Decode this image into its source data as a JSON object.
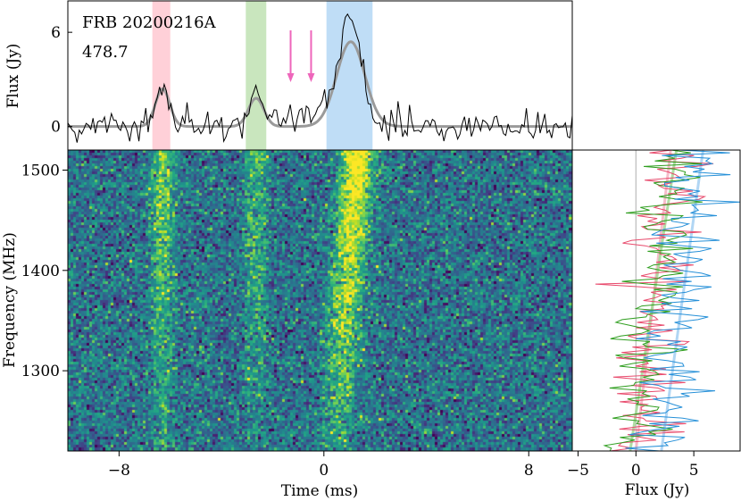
{
  "chart_data": [
    {
      "panel": "profile",
      "type": "line",
      "annotations": [
        "FRB 20200216A",
        "478.7"
      ],
      "ylabel": "Flux (Jy)",
      "xlim": [
        -10,
        9.7
      ],
      "ylim": [
        -1.5,
        8
      ],
      "yticks": [
        0,
        6
      ],
      "shaded_bands": [
        {
          "color": "#ffc0cb",
          "x_start": -6.7,
          "x_end": -6.0
        },
        {
          "color": "#b7dea8",
          "x_start": -3.05,
          "x_end": -2.25
        },
        {
          "color": "#a9d2f3",
          "x_start": 0.1,
          "x_end": 1.9
        }
      ],
      "arrows_x": [
        -1.3,
        -0.5
      ],
      "arrow_color": "#ee66bb",
      "series": [
        {
          "role": "data",
          "color": "#000000",
          "peaks": [
            {
              "x": -6.3,
              "y": 2.8
            },
            {
              "x": -2.65,
              "y": 2.3
            },
            {
              "x": 1.0,
              "y": 6.9
            }
          ],
          "noise_rms": 0.5
        },
        {
          "role": "fit",
          "color": "#999999",
          "components": [
            {
              "x": -6.3,
              "amp": 2.4,
              "sigma": 0.28
            },
            {
              "x": -2.65,
              "amp": 1.8,
              "sigma": 0.3
            },
            {
              "x": 1.05,
              "amp": 5.4,
              "sigma": 0.55
            }
          ]
        }
      ]
    },
    {
      "panel": "dynamic-spectrum",
      "type": "heatmap",
      "colormap": "viridis",
      "xlabel": "Time (ms)",
      "ylabel": "Frequency (MHz)",
      "xlim": [
        -10,
        9.7
      ],
      "ylim": [
        1220,
        1520
      ],
      "xticks": [
        -8,
        0,
        8
      ],
      "yticks": [
        1300,
        1400,
        1500
      ],
      "bursts_x": [
        -6.3,
        -2.65,
        1.0
      ]
    },
    {
      "panel": "spectra",
      "type": "line",
      "xlabel": "Flux (Jy)",
      "xlim": [
        -5.5,
        9
      ],
      "ylim": [
        1220,
        1520
      ],
      "xticks": [
        -5,
        0,
        5
      ],
      "series": [
        {
          "color": "#e84a6c",
          "fit_color": "#f4b6c4",
          "fit_x": [
            0,
            3
          ]
        },
        {
          "color": "#2f9e1f",
          "fit_color": "#a7d99a",
          "fit_x": [
            -0.5,
            3.5
          ]
        },
        {
          "color": "#2690d8",
          "fit_color": "#a9d2f3",
          "fit_x": [
            2.2,
            5.8
          ]
        }
      ]
    }
  ]
}
